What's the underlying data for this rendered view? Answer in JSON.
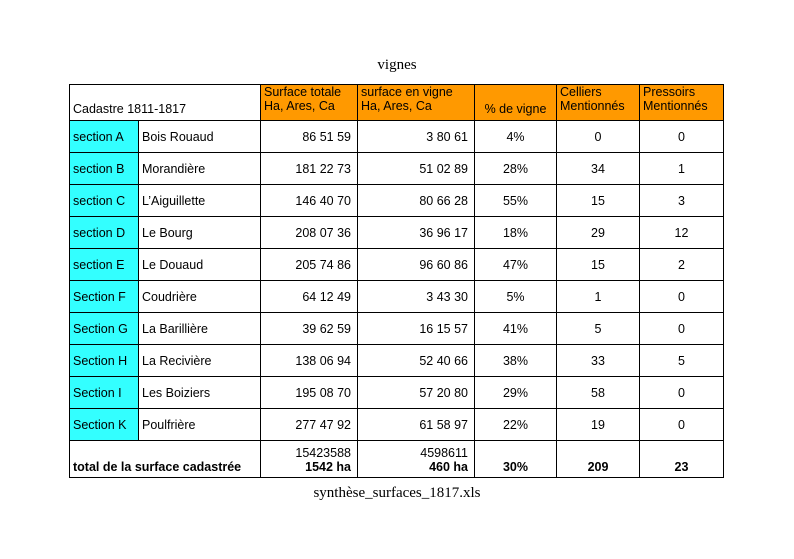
{
  "title": "vignes",
  "footer": "synthèse_surfaces_1817.xls",
  "header": {
    "cadastre": "Cadastre 1811-1817",
    "surface_totale_1": "Surface totale",
    "surface_totale_2": "Ha, Ares, Ca",
    "surface_vigne_1": "surface en vigne",
    "surface_vigne_2": "Ha, Ares, Ca",
    "pct_vigne": "% de vigne",
    "celliers_1": "Celliers",
    "celliers_2": "Mentionnés",
    "pressoirs_1": "Pressoirs",
    "pressoirs_2": "Mentionnés"
  },
  "rows": [
    {
      "section": "section A",
      "name": "Bois Rouaud",
      "surface_totale": "86 51 59",
      "surface_vigne": "3 80 61",
      "pct": "4%",
      "celliers": "0",
      "pressoirs": "0"
    },
    {
      "section": "section B",
      "name": "Morandière",
      "surface_totale": "181 22 73",
      "surface_vigne": "51 02 89",
      "pct": "28%",
      "celliers": "34",
      "pressoirs": "1"
    },
    {
      "section": "section C",
      "name": "L’Aiguillette",
      "surface_totale": "146 40 70",
      "surface_vigne": "80 66 28",
      "pct": "55%",
      "celliers": "15",
      "pressoirs": "3"
    },
    {
      "section": "section D",
      "name": "Le Bourg",
      "surface_totale": "208 07 36",
      "surface_vigne": "36 96 17",
      "pct": "18%",
      "celliers": "29",
      "pressoirs": "12"
    },
    {
      "section": "section E",
      "name": "Le Douaud",
      "surface_totale": "205 74 86",
      "surface_vigne": "96 60 86",
      "pct": "47%",
      "celliers": "15",
      "pressoirs": "2"
    },
    {
      "section": "Section F",
      "name": "Coudrière",
      "surface_totale": "64 12 49",
      "surface_vigne": "3 43 30",
      "pct": "5%",
      "celliers": "1",
      "pressoirs": "0"
    },
    {
      "section": "Section G",
      "name": "La Barillière",
      "surface_totale": "39 62 59",
      "surface_vigne": "16 15 57",
      "pct": "41%",
      "celliers": "5",
      "pressoirs": "0"
    },
    {
      "section": "Section H",
      "name": "La Recivière",
      "surface_totale": "138 06 94",
      "surface_vigne": "52 40 66",
      "pct": "38%",
      "celliers": "33",
      "pressoirs": "5"
    },
    {
      "section": "Section I",
      "name": "Les Boiziers",
      "surface_totale": "195 08 70",
      "surface_vigne": "57 20 80",
      "pct": "29%",
      "celliers": "58",
      "pressoirs": "0"
    },
    {
      "section": "Section K",
      "name": "Poulfrière",
      "surface_totale": "277 47 92",
      "surface_vigne": "61 58 97",
      "pct": "22%",
      "celliers": "19",
      "pressoirs": "0"
    }
  ],
  "total": {
    "label": "total de la surface cadastrée",
    "surface_totale_raw": "15423588",
    "surface_totale_ha": "1542 ha",
    "surface_vigne_raw": "4598611",
    "surface_vigne_ha": "460 ha",
    "pct": "30%",
    "celliers": "209",
    "pressoirs": "23"
  },
  "colors": {
    "header": "#ff9900",
    "section": "#33ffff"
  }
}
